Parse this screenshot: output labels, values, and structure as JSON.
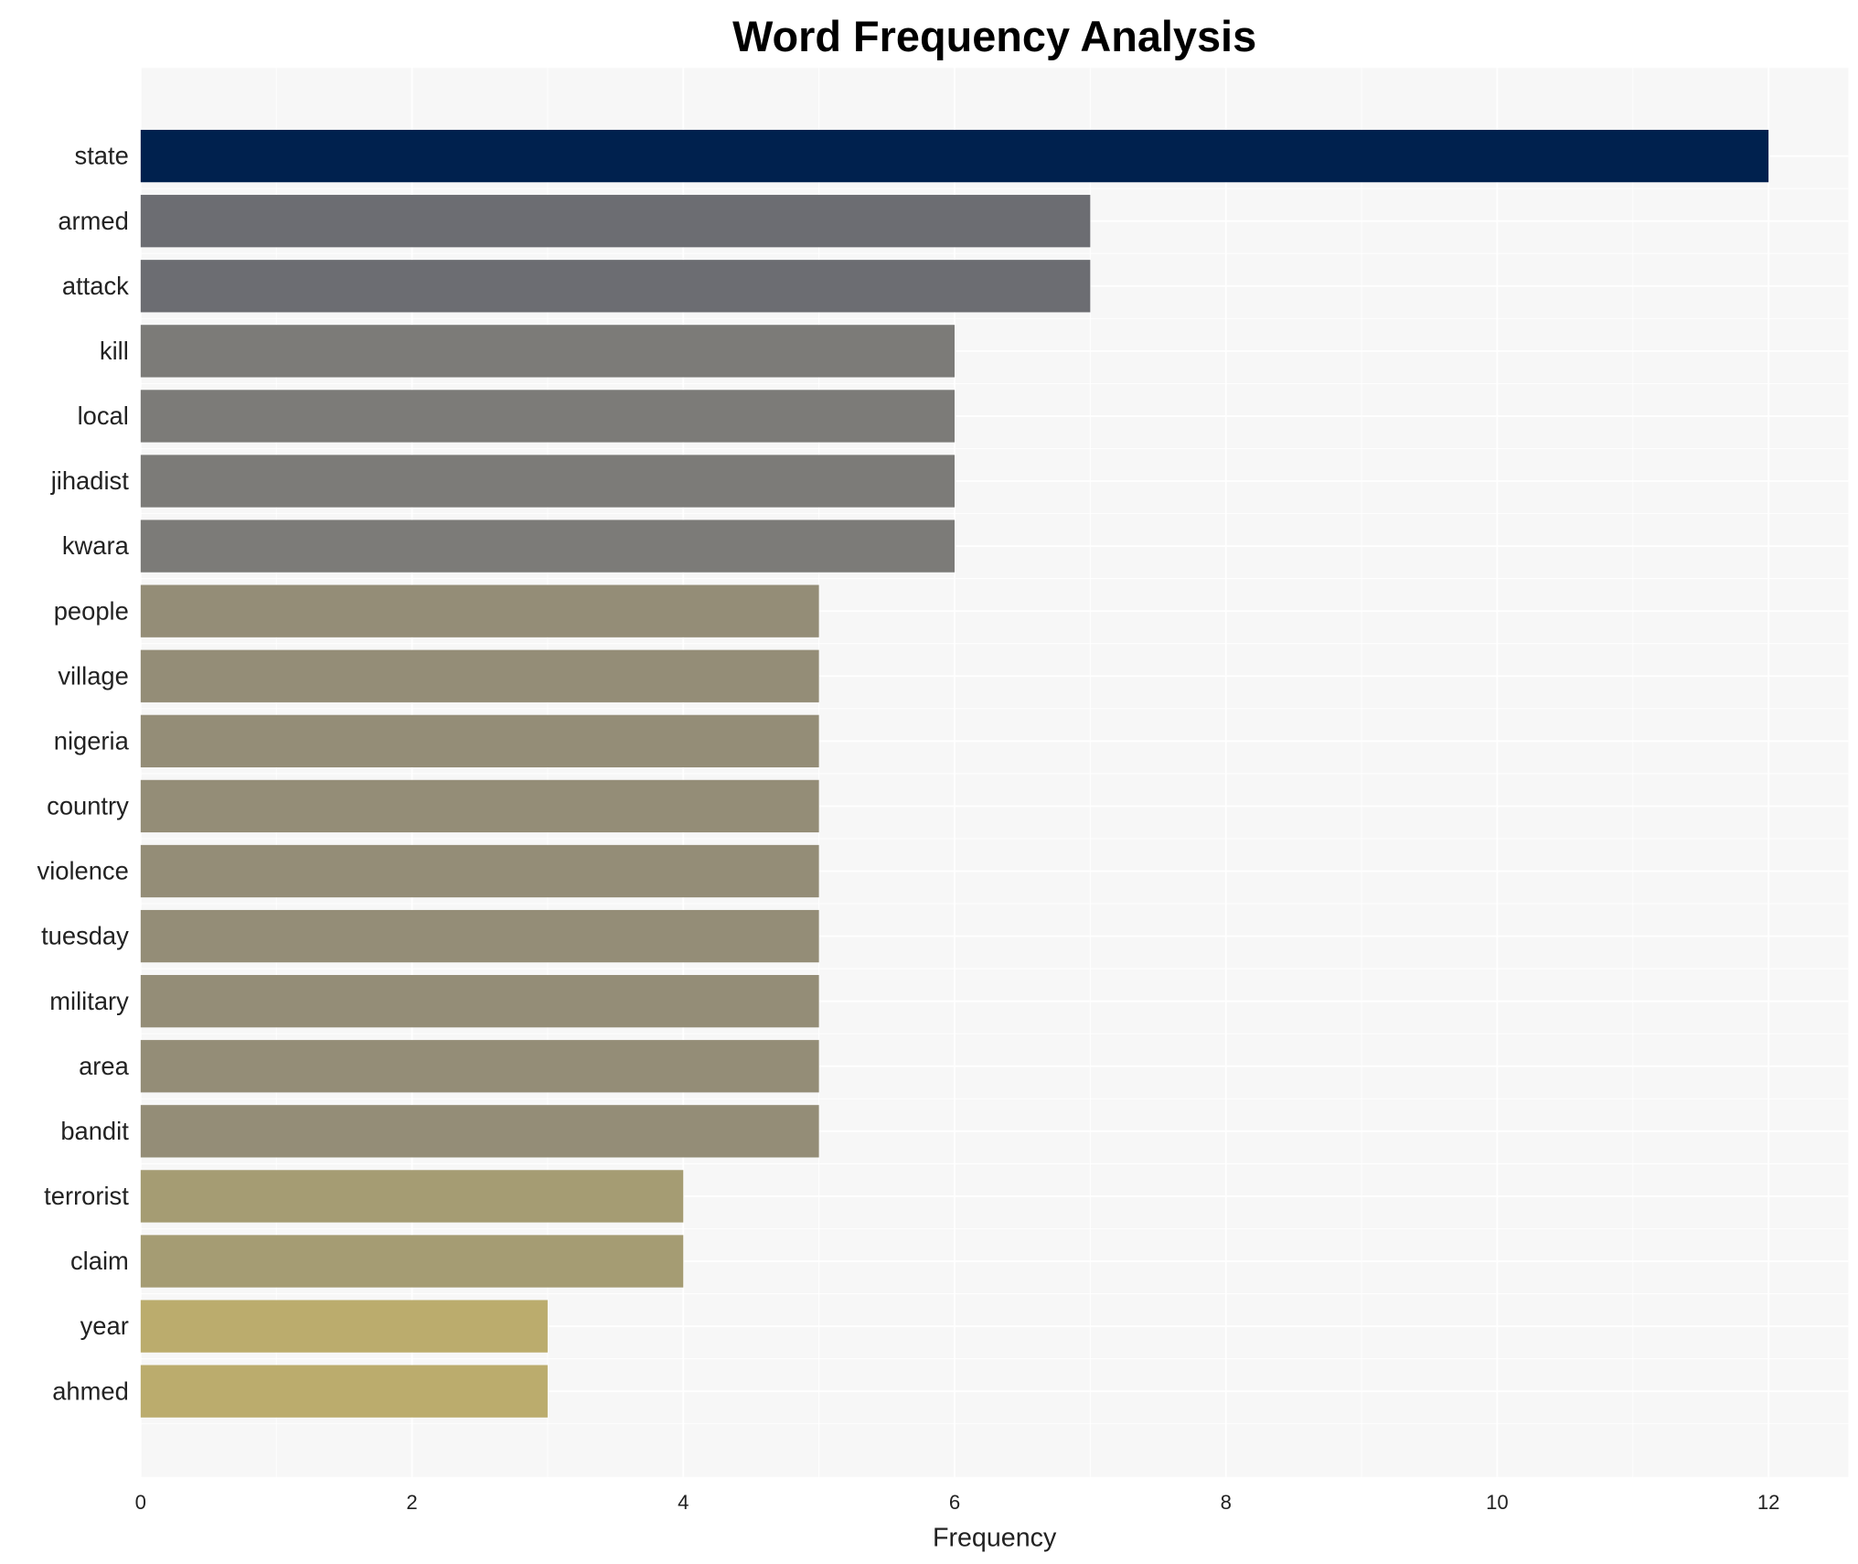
{
  "chart_data": {
    "type": "bar",
    "orientation": "horizontal",
    "title": "Word Frequency Analysis",
    "xlabel": "Frequency",
    "ylabel": "",
    "xlim": [
      0,
      12.6
    ],
    "xticks": [
      0,
      2,
      4,
      6,
      8,
      10,
      12
    ],
    "grid": true,
    "categories": [
      "state",
      "armed",
      "attack",
      "kill",
      "local",
      "jihadist",
      "kwara",
      "people",
      "village",
      "nigeria",
      "country",
      "violence",
      "tuesday",
      "military",
      "area",
      "bandit",
      "terrorist",
      "claim",
      "year",
      "ahmed"
    ],
    "values": [
      12,
      7,
      7,
      6,
      6,
      6,
      6,
      5,
      5,
      5,
      5,
      5,
      5,
      5,
      5,
      5,
      4,
      4,
      3,
      3
    ],
    "colors": {
      "12": "#00214e",
      "7": "#6c6d72",
      "6": "#7c7b78",
      "5": "#948d77",
      "4": "#a59c73",
      "3": "#bbac6d"
    },
    "background": "#f7f7f7"
  }
}
